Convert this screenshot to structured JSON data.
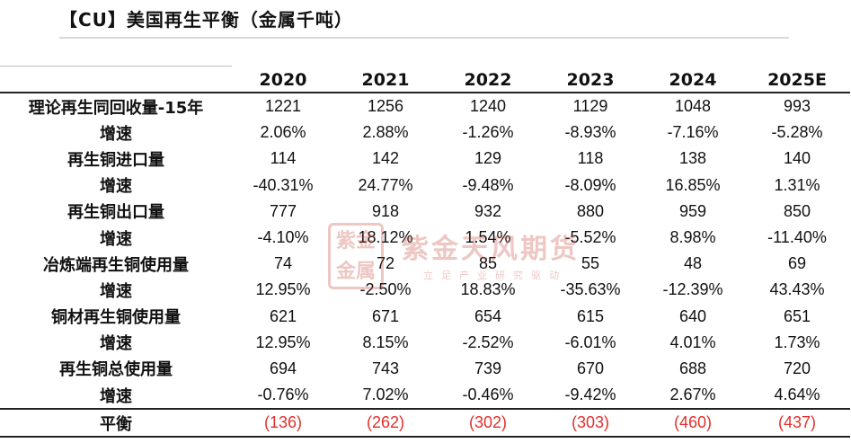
{
  "title": "【CU】美国再生平衡（金属千吨）",
  "watermark": {
    "seal_top": "紫金",
    "seal_bottom": "金属",
    "company": "紫金天风期货",
    "slogan": "立足产业研究驱动"
  },
  "table": {
    "columns": [
      "2020",
      "2021",
      "2022",
      "2023",
      "2024",
      "2025E"
    ],
    "rows": [
      {
        "label": "理论再生同回收量-15年",
        "values": [
          "1221",
          "1256",
          "1240",
          "1129",
          "1048",
          "993"
        ]
      },
      {
        "label": "增速",
        "values": [
          "2.06%",
          "2.88%",
          "-1.26%",
          "-8.93%",
          "-7.16%",
          "-5.28%"
        ]
      },
      {
        "label": "再生铜进口量",
        "values": [
          "114",
          "142",
          "129",
          "118",
          "138",
          "140"
        ]
      },
      {
        "label": "增速",
        "values": [
          "-40.31%",
          "24.77%",
          "-9.48%",
          "-8.09%",
          "16.85%",
          "1.31%"
        ]
      },
      {
        "label": "再生铜出口量",
        "values": [
          "777",
          "918",
          "932",
          "880",
          "959",
          "850"
        ]
      },
      {
        "label": "增速",
        "values": [
          "-4.10%",
          "18.12%",
          "1.54%",
          "-5.52%",
          "8.98%",
          "-11.40%"
        ]
      },
      {
        "label": "冶炼端再生铜使用量",
        "values": [
          "74",
          "72",
          "85",
          "55",
          "48",
          "69"
        ]
      },
      {
        "label": "增速",
        "values": [
          "12.95%",
          "-2.50%",
          "18.83%",
          "-35.63%",
          "-12.39%",
          "43.43%"
        ]
      },
      {
        "label": "铜材再生铜使用量",
        "values": [
          "621",
          "671",
          "654",
          "615",
          "640",
          "651"
        ]
      },
      {
        "label": "增速",
        "values": [
          "12.95%",
          "8.15%",
          "-2.52%",
          "-6.01%",
          "4.01%",
          "1.73%"
        ]
      },
      {
        "label": "再生铜总使用量",
        "values": [
          "694",
          "743",
          "739",
          "670",
          "688",
          "720"
        ]
      },
      {
        "label": "增速",
        "values": [
          "-0.76%",
          "7.02%",
          "-0.46%",
          "-9.42%",
          "2.67%",
          "4.64%"
        ]
      }
    ],
    "balance": {
      "label": "平衡",
      "values": [
        "(136)",
        "(262)",
        "(302)",
        "(303)",
        "(460)",
        "(437)"
      ],
      "color": "#e0302c"
    }
  }
}
